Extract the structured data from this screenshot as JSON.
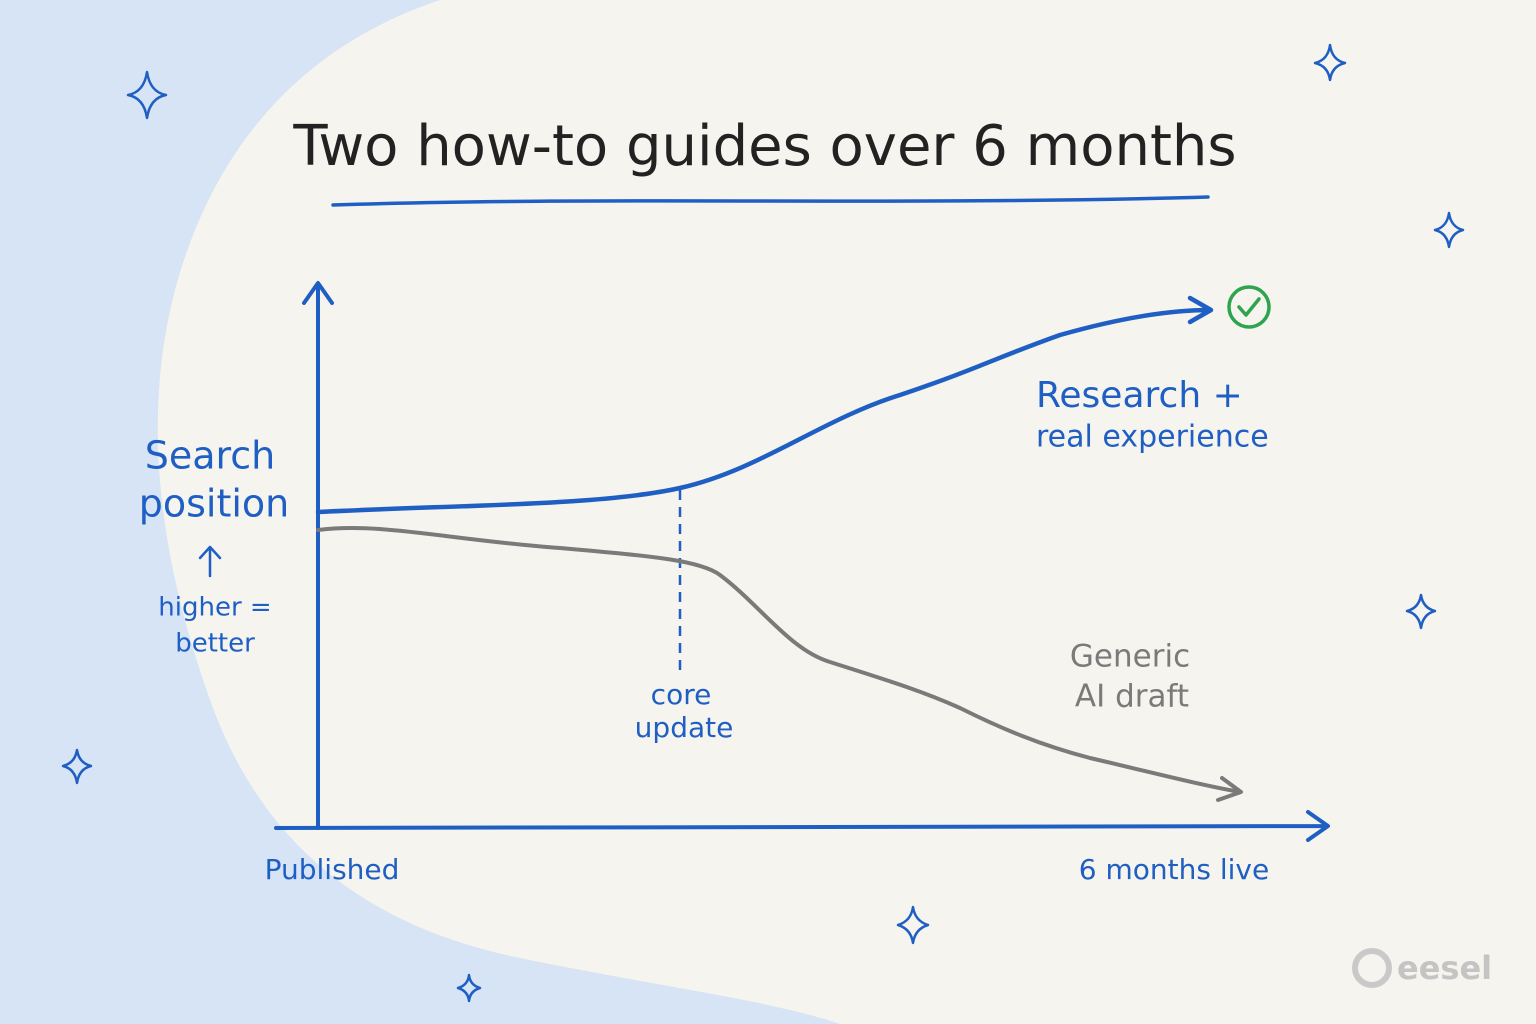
{
  "title": "Two how-to guides over 6 months",
  "y_axis": {
    "label_lines": [
      "Search",
      "position"
    ],
    "note_lines": [
      "higher =",
      "better"
    ]
  },
  "x_axis": {
    "start_label": "Published",
    "end_label": "6 months live"
  },
  "annotation": {
    "lines": [
      "core",
      "update"
    ]
  },
  "series": [
    {
      "label_lines": [
        "Research +",
        "real experience"
      ]
    },
    {
      "label_lines": [
        "Generic",
        "AI draft"
      ]
    }
  ],
  "logo": "eesel"
}
